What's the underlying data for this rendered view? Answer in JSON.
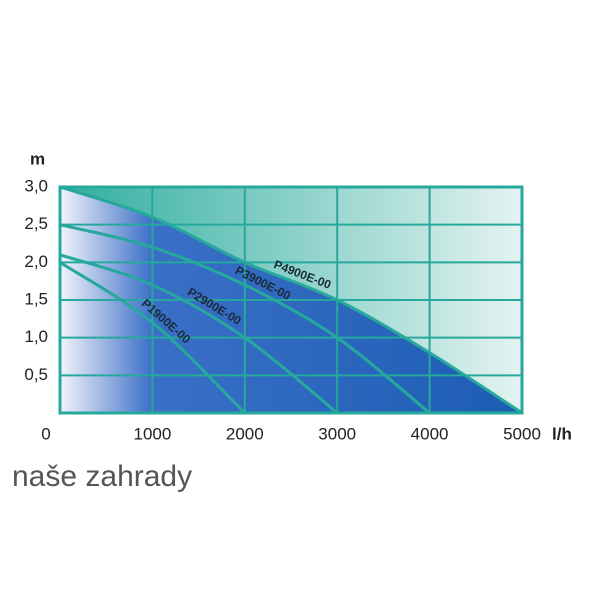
{
  "chart_data": {
    "type": "line",
    "ylabel": "m",
    "xlabel": "l/h",
    "x": [
      0,
      1000,
      2000,
      3000,
      4000,
      5000
    ],
    "xlim": [
      0,
      5000
    ],
    "xticks": [
      0,
      1000,
      2000,
      3000,
      4000,
      5000
    ],
    "ylim": [
      0,
      3
    ],
    "yticks": [
      {
        "value": 0.5,
        "label": "0,5"
      },
      {
        "value": 1,
        "label": "1,0"
      },
      {
        "value": 1.5,
        "label": "1,5"
      },
      {
        "value": 2,
        "label": "2,0"
      },
      {
        "value": 2.5,
        "label": "2,5"
      },
      {
        "value": 3,
        "label": "3,0"
      }
    ],
    "grid": true,
    "color": "#26a89c",
    "series": [
      {
        "name": "P1900E-00",
        "values": [
          2.0,
          1.2,
          0,
          null,
          null,
          null
        ]
      },
      {
        "name": "P2900E-00",
        "values": [
          2.1,
          1.7,
          1.0,
          0,
          null,
          null
        ]
      },
      {
        "name": "P3900E-00",
        "values": [
          2.5,
          2.2,
          1.7,
          1.0,
          0,
          null
        ]
      },
      {
        "name": "P4900E-00",
        "values": [
          3.0,
          2.6,
          2.0,
          1.5,
          0.8,
          0
        ]
      }
    ]
  },
  "watermark": "naše zahrady"
}
